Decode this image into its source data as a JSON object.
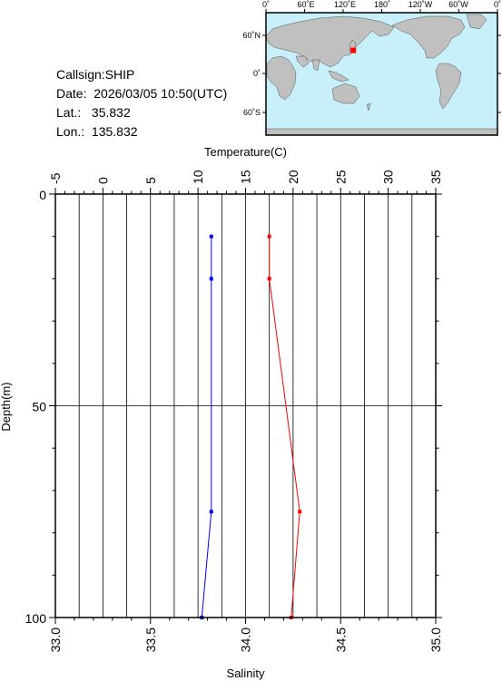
{
  "header": {
    "callsign": "Callsign:SHIP",
    "date": "Date:  2026/03/05 10:50(UTC)",
    "lat": "Lat.:   35.832",
    "lon": "Lon.:  135.832"
  },
  "map": {
    "lon_labels": [
      "0˚",
      "60˚E",
      "120˚E",
      "180˚",
      "120˚W",
      "60˚W",
      "0˚"
    ],
    "lat_labels": [
      "60˚N",
      "0˚",
      "60˚S"
    ],
    "station": {
      "lat": 35.832,
      "lon": 135.832,
      "color": "#ff0000"
    },
    "colors": {
      "ocean": "#c8f0fa",
      "land": "#c0c0c0"
    }
  },
  "chart_data": {
    "type": "line",
    "title": "",
    "top_axis": {
      "label": "Temperature(C)",
      "range": [
        -5,
        35
      ],
      "ticks": [
        -5,
        0,
        5,
        10,
        15,
        20,
        25,
        30,
        35
      ],
      "tick_labels": [
        "-5",
        "0",
        "5",
        "10",
        "15",
        "20",
        "25",
        "30",
        "35"
      ]
    },
    "bottom_axis": {
      "label": "Salinity",
      "range": [
        33.0,
        35.0
      ],
      "ticks": [
        33.0,
        33.5,
        34.0,
        34.5,
        35.0
      ],
      "tick_labels": [
        "33.0",
        "33.5",
        "34.0",
        "34.5",
        "35.0"
      ]
    },
    "y_axis": {
      "label": "Depth(m)",
      "range": [
        0,
        100
      ],
      "inverted": true,
      "ticks": [
        0,
        50,
        100
      ],
      "tick_labels": [
        "0",
        "50",
        "100"
      ]
    },
    "grid": true,
    "series": [
      {
        "axis": "top",
        "color": "#ff0000",
        "points": [
          {
            "depth": 10,
            "value": 17.5
          },
          {
            "depth": 20,
            "value": 17.5
          },
          {
            "depth": 75,
            "value": 20.7
          },
          {
            "depth": 100,
            "value": 19.8
          }
        ]
      },
      {
        "axis": "bottom",
        "color": "#0000ff",
        "points": [
          {
            "depth": 10,
            "value": 33.82
          },
          {
            "depth": 20,
            "value": 33.82
          },
          {
            "depth": 75,
            "value": 33.82
          },
          {
            "depth": 100,
            "value": 33.77
          }
        ]
      }
    ]
  }
}
